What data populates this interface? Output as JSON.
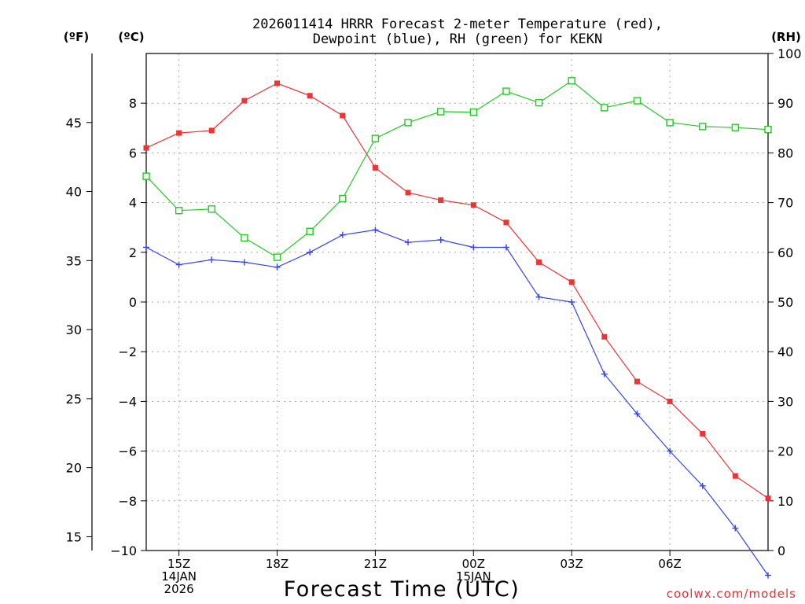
{
  "chart_data": {
    "type": "line",
    "title_line1": "2026011414 HRRR Forecast 2-meter Temperature (red),",
    "title_line2": "Dewpoint (blue), RH (green) for KEKN",
    "xlabel": "Forecast Time (UTC)",
    "credit": "coolwx.com/models",
    "left_outer_unit": "(ºF)",
    "left_inner_unit": "(ºC)",
    "right_unit": "(RH)",
    "x_hours": [
      14,
      15,
      16,
      17,
      18,
      19,
      20,
      21,
      22,
      23,
      24,
      25,
      26,
      27,
      28,
      29,
      30,
      31,
      32,
      33
    ],
    "x_range": [
      14,
      33
    ],
    "celsius_range": [
      -10,
      10
    ],
    "fahrenheit_ticks": [
      45,
      40,
      35,
      30,
      25,
      20,
      15
    ],
    "celsius_ticks": [
      8,
      6,
      4,
      2,
      0,
      -2,
      -4,
      -6,
      -8,
      -10
    ],
    "celsius_tick_labels": [
      "8",
      "6",
      "4",
      "2",
      "0",
      "−2",
      "−4",
      "−6",
      "−8",
      "−10"
    ],
    "rh_range": [
      0,
      100
    ],
    "rh_ticks": [
      100,
      90,
      80,
      70,
      60,
      50,
      40,
      30,
      20,
      10,
      0
    ],
    "x_ticks": [
      {
        "hour": 15,
        "lines": [
          "15Z",
          "14JAN",
          "2026"
        ]
      },
      {
        "hour": 18,
        "lines": [
          "18Z"
        ]
      },
      {
        "hour": 21,
        "lines": [
          "21Z"
        ]
      },
      {
        "hour": 24,
        "lines": [
          "00Z",
          "15JAN"
        ]
      },
      {
        "hour": 27,
        "lines": [
          "03Z"
        ]
      },
      {
        "hour": 30,
        "lines": [
          "06Z"
        ]
      }
    ],
    "series": [
      {
        "name": "Temperature",
        "unit": "C",
        "color": "#ee3333",
        "values": [
          6.2,
          6.8,
          6.9,
          8.1,
          8.8,
          8.3,
          7.5,
          5.4,
          4.4,
          4.1,
          3.9,
          3.2,
          1.6,
          0.8,
          -1.4,
          -3.2,
          -4.0,
          -5.3,
          -7.0,
          -7.9
        ]
      },
      {
        "name": "Dewpoint",
        "unit": "C",
        "color": "#3344ee",
        "values": [
          2.2,
          1.5,
          1.7,
          1.6,
          1.4,
          2.0,
          2.7,
          2.9,
          2.4,
          2.5,
          2.2,
          2.2,
          0.2,
          0.0,
          -2.9,
          -4.5,
          -6.0,
          -7.4,
          -9.1,
          -11.0
        ]
      },
      {
        "name": "RH",
        "unit": "%",
        "color": "#22cc22",
        "values": [
          75.3,
          68.4,
          68.7,
          62.9,
          59.0,
          64.2,
          70.8,
          82.9,
          86.1,
          88.3,
          88.2,
          92.4,
          90.1,
          94.5,
          89.1,
          90.5,
          86.1,
          85.3,
          85.1,
          84.7
        ]
      }
    ]
  }
}
